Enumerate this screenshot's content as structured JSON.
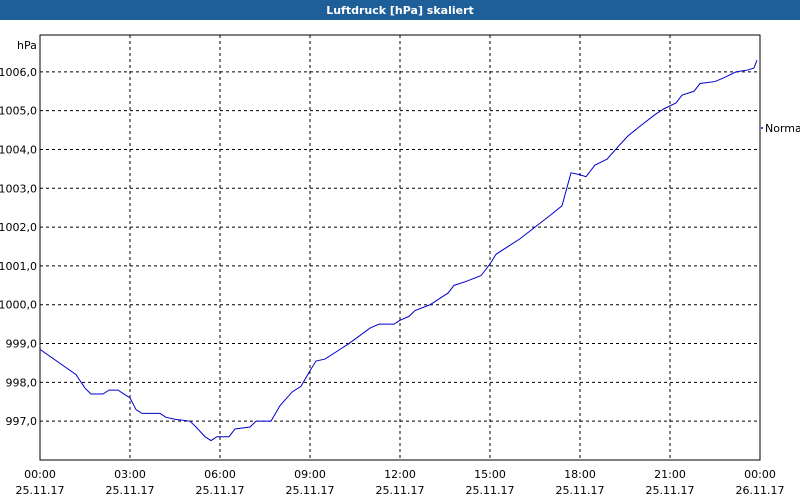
{
  "chart_data": {
    "type": "line",
    "title": "Luftdruck [hPa] skaliert",
    "y_label": "hPa",
    "xlim": [
      0,
      24
    ],
    "ylim": [
      996.0,
      1006.95
    ],
    "xticks": [
      {
        "value": 0,
        "label": "00:00"
      },
      {
        "value": 3,
        "label": "03:00"
      },
      {
        "value": 6,
        "label": "06:00"
      },
      {
        "value": 9,
        "label": "09:00"
      },
      {
        "value": 12,
        "label": "12:00"
      },
      {
        "value": 15,
        "label": "15:00"
      },
      {
        "value": 18,
        "label": "18:00"
      },
      {
        "value": 21,
        "label": "21:00"
      },
      {
        "value": 24,
        "label": "00:00"
      }
    ],
    "xtick_dates": [
      "25.11.17",
      "25.11.17",
      "25.11.17",
      "25.11.17",
      "25.11.17",
      "25.11.17",
      "25.11.17",
      "25.11.17",
      "26.11.17"
    ],
    "yticks": [
      {
        "value": 997,
        "label": "997,0"
      },
      {
        "value": 998,
        "label": "998,0"
      },
      {
        "value": 999,
        "label": "999,0"
      },
      {
        "value": 1000,
        "label": "1000,0"
      },
      {
        "value": 1001,
        "label": "1001,0"
      },
      {
        "value": 1002,
        "label": "1002,0"
      },
      {
        "value": 1003,
        "label": "1003,0"
      },
      {
        "value": 1004,
        "label": "1004,0"
      },
      {
        "value": 1005,
        "label": "1005,0"
      },
      {
        "value": 1006,
        "label": "1006,0"
      }
    ],
    "grid": true,
    "x": [
      0,
      1.2,
      1.5,
      1.7,
      2.1,
      2.3,
      2.6,
      2.8,
      3.0,
      3.2,
      3.4,
      4.0,
      4.2,
      4.5,
      5.0,
      5.2,
      5.5,
      5.7,
      5.9,
      6.3,
      6.5,
      7.0,
      7.2,
      7.7,
      8.0,
      8.4,
      8.7,
      9.0,
      9.2,
      9.5,
      10.0,
      10.3,
      11.0,
      11.3,
      11.8,
      12.0,
      12.3,
      12.5,
      13.0,
      13.3,
      13.6,
      13.8,
      14.2,
      14.7,
      15.0,
      15.2,
      16.0,
      16.5,
      17.0,
      17.4,
      17.7,
      18.0,
      18.2,
      18.5,
      18.9,
      19.3,
      19.6,
      20.0,
      20.5,
      20.8,
      21.2,
      21.4,
      21.8,
      22.0,
      22.5,
      22.8,
      23.2,
      23.6,
      23.8,
      23.9
    ],
    "series": [
      {
        "name": "Normal",
        "color": "#0000cc",
        "values": [
          998.85,
          998.2,
          997.85,
          997.7,
          997.7,
          997.8,
          997.8,
          997.7,
          997.6,
          997.3,
          997.2,
          997.2,
          997.1,
          997.05,
          997.0,
          996.85,
          996.6,
          996.5,
          996.6,
          996.6,
          996.8,
          996.85,
          997.0,
          997.0,
          997.4,
          997.75,
          997.9,
          998.3,
          998.55,
          998.6,
          998.85,
          999.0,
          999.4,
          999.5,
          999.5,
          999.6,
          999.7,
          999.85,
          1000.0,
          1000.15,
          1000.3,
          1000.5,
          1000.6,
          1000.75,
          1001.05,
          1001.3,
          1001.7,
          1002.0,
          1002.3,
          1002.55,
          1003.4,
          1003.35,
          1003.3,
          1003.6,
          1003.75,
          1004.1,
          1004.35,
          1004.6,
          1004.9,
          1005.05,
          1005.2,
          1005.4,
          1005.5,
          1005.7,
          1005.75,
          1005.85,
          1006.0,
          1006.05,
          1006.1,
          1006.3
        ]
      }
    ]
  }
}
